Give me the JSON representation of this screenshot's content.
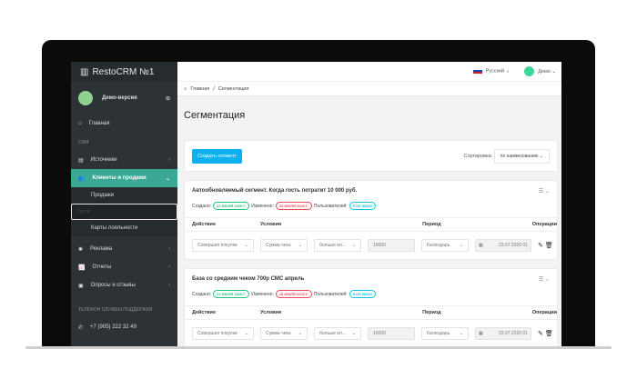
{
  "sidebar": {
    "logo": "RestoCRM №1",
    "user": "Демо-версия",
    "home": "Главная",
    "section": "CRM",
    "items": [
      {
        "label": "Источники"
      },
      {
        "label": "Клиенты и продажи"
      },
      {
        "label": "Реклама"
      },
      {
        "label": "Отчеты"
      },
      {
        "label": "Опросы и отзывы"
      }
    ],
    "sub": [
      "Продажи",
      "Гости",
      "Карты лояльности"
    ],
    "support_title": "ТЕЛЕФОН СЛУЖБЫ ПОДДЕРЖКИ",
    "phone": "+7 (905) 222 32 49"
  },
  "topbar": {
    "language": "Русский",
    "user": "Демо"
  },
  "breadcrumb": {
    "home": "Главная",
    "sep": "/",
    "current": "Сегментация"
  },
  "page_title": "Сегментация",
  "controls": {
    "create": "Создать сегмент",
    "sort_label": "Сортировка:",
    "sort_value": "по наименованию"
  },
  "columns": [
    "Действие",
    "Условия",
    "Период",
    "Операции"
  ],
  "segments": [
    {
      "title": "Автообновляемый сегмент. Когда гость потратит 10 000 руб.",
      "created_label": "Создано:",
      "created": "23 ИЮЛЯ 2020 Г.",
      "changed_label": "Изменено:",
      "changed": "23 ИЮЛЯ 2020 Г.",
      "users_label": "Пользователей:",
      "users": "5 ИЗ 58254",
      "action": "Совершил покупки",
      "condition": "Сумма чека",
      "operator": "больше ил...",
      "value": "10000",
      "period": "Календарь",
      "date": "23.07.2020 01"
    },
    {
      "title": "База со средним чеком 700р СМС апрель",
      "created_label": "Создано:",
      "created": "23 ИЮЛЯ 2020 Г.",
      "changed_label": "Изменено:",
      "changed": "23 ИЮЛЯ 2020 Г.",
      "users_label": "Пользователей:",
      "users": "5 ИЗ 58254",
      "action": "Совершил покупки",
      "condition": "Сумма чека",
      "operator": "больше ил...",
      "value": "10000",
      "period": "Календарь",
      "date": "23.07.2020 01"
    }
  ],
  "colors": {
    "sidebar": "#2c3236",
    "active": "#3aa892",
    "button": "#0fb0f0",
    "created": "#1ec77a",
    "changed": "#f04a5a",
    "users": "#12c3e8"
  }
}
